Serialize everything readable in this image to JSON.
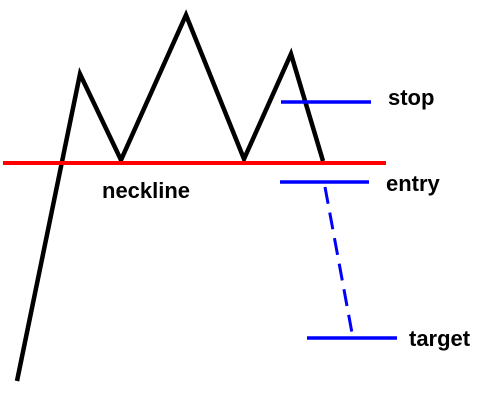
{
  "diagram": {
    "labels": {
      "neckline": "neckline",
      "stop": "stop",
      "entry": "entry",
      "target": "target"
    },
    "colors": {
      "price": "#000000",
      "neckline": "#ff0000",
      "levels": "#0000ff",
      "text": "#000000"
    }
  }
}
